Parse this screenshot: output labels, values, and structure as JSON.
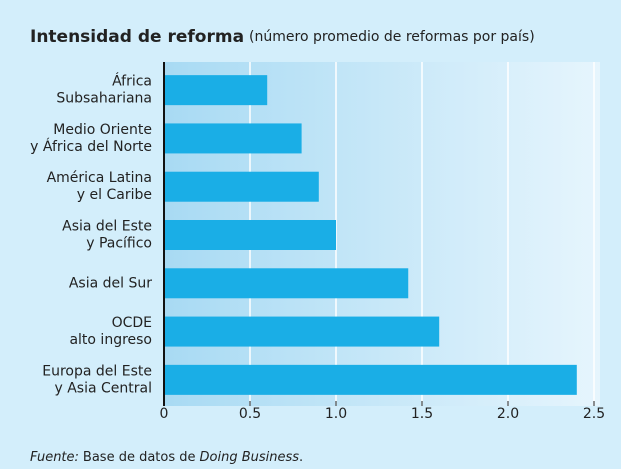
{
  "chart_data": {
    "type": "barh",
    "title": "Intensidad de reforma",
    "subtitle": "(número promedio de reformas por país)",
    "categories": [
      [
        "África",
        "Subsahariana"
      ],
      [
        "Medio Oriente",
        "y África del Norte"
      ],
      [
        "América Latina",
        "y el Caribe"
      ],
      [
        "Asia del Este",
        "y Pacífico"
      ],
      [
        "Asia del Sur"
      ],
      [
        "OCDE",
        "alto ingreso"
      ],
      [
        "Europa del Este",
        "y Asia Central"
      ]
    ],
    "values": [
      0.6,
      0.8,
      0.9,
      1.0,
      1.42,
      1.6,
      2.4
    ],
    "color": "#1aaee6",
    "xlim": [
      0,
      2.5
    ],
    "xticks": [
      0,
      0.5,
      {
        "value": 1,
        "label": "1.0"
      },
      1.5,
      {
        "value": 2,
        "label": "2.0"
      },
      2.5
    ],
    "grid": true,
    "source": [
      "Fuente:",
      "Base de datos de",
      "Doing Business",
      "."
    ]
  }
}
